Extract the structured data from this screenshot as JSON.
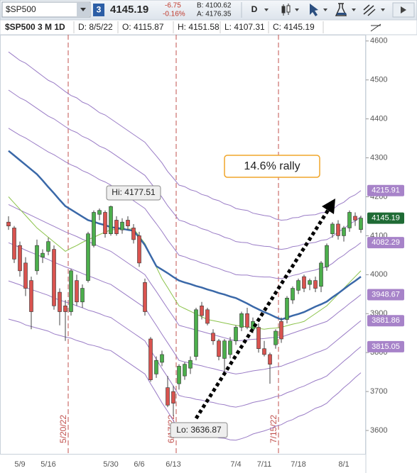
{
  "toolbar": {
    "symbol": "$SP500",
    "badge": "3",
    "last": "4145.19",
    "change": "-6.75",
    "change_pct": "-0.16%",
    "bid": "B: 4100.62",
    "ask": "A: 4176.35",
    "period": "D"
  },
  "info_bar": [
    "$SP500 3 M 1D",
    "D: 8/5/22",
    "O: 4115.87",
    "H: 4151.58",
    "L: 4107.31",
    "C: 4145.19"
  ],
  "events": [
    "5/20/22",
    "6/17/22",
    "7/15/22"
  ],
  "annotations": {
    "high": "Hi: 4177.51",
    "low": "Lo: 3636.87",
    "rally": "14.6% rally"
  },
  "chart_data": {
    "type": "candlestick",
    "categories": [
      null,
      null,
      "5/9",
      null,
      null,
      null,
      null,
      "5/16",
      null,
      null,
      null,
      null,
      null,
      null,
      null,
      null,
      null,
      null,
      "5/30",
      null,
      null,
      null,
      null,
      "6/6",
      null,
      null,
      null,
      null,
      null,
      "6/13",
      null,
      null,
      null,
      null,
      null,
      null,
      null,
      null,
      null,
      null,
      "7/4",
      null,
      null,
      null,
      null,
      "7/11",
      null,
      null,
      null,
      null,
      null,
      "7/18",
      null,
      null,
      null,
      null,
      null,
      null,
      null,
      "8/1",
      null,
      null,
      null
    ],
    "open": [
      4135,
      4120,
      4075,
      4030,
      3985,
      4010,
      4045,
      4060,
      4065,
      3955,
      3920,
      3905,
      3985,
      3930,
      3985,
      4075,
      4155,
      4160,
      4105,
      4140,
      4115,
      4140,
      4120,
      4100,
      3980,
      3835,
      3745,
      3775,
      3710,
      3700,
      3720,
      3740,
      3760,
      3790,
      3920,
      3910,
      3850,
      3830,
      3785,
      3795,
      3830,
      3865,
      3900,
      3860,
      3865,
      3810,
      3795,
      3820,
      3880,
      3885,
      3935,
      3960,
      3995,
      3975,
      3985,
      3970,
      4020,
      4105,
      4130,
      4100,
      4120,
      4150,
      4115.87
    ],
    "high": [
      4150,
      4125,
      4085,
      4045,
      3995,
      4090,
      4065,
      4095,
      4075,
      3965,
      3935,
      4015,
      4000,
      3975,
      4110,
      4165,
      4170,
      4165,
      4177.51,
      4150,
      4145,
      4150,
      4130,
      4110,
      3990,
      3840,
      3790,
      3805,
      3740,
      3715,
      3770,
      3775,
      3790,
      3915,
      3930,
      3915,
      3860,
      3835,
      3835,
      3840,
      3870,
      3905,
      3915,
      3890,
      3875,
      3830,
      3800,
      3860,
      3890,
      3945,
      3970,
      3990,
      4000,
      3990,
      3995,
      4035,
      4080,
      4135,
      4140,
      4125,
      4165,
      4160,
      4151.58
    ],
    "low": [
      4115,
      4030,
      3995,
      3945,
      3860,
      4000,
      4030,
      4050,
      3910,
      3870,
      3830,
      3895,
      3920,
      3915,
      3980,
      4070,
      4140,
      4095,
      4100,
      4100,
      4105,
      4115,
      4080,
      4020,
      3895,
      3725,
      3735,
      3765,
      3660,
      3636.87,
      3705,
      3730,
      3745,
      3780,
      3885,
      3870,
      3820,
      3780,
      3745,
      3785,
      3820,
      3855,
      3860,
      3850,
      3800,
      3790,
      3720,
      3810,
      3825,
      3875,
      3925,
      3950,
      3955,
      3960,
      3955,
      3955,
      4010,
      4095,
      4090,
      4085,
      4110,
      4125,
      4107.31
    ],
    "close": [
      4125,
      4040,
      4010,
      3965,
      3905,
      4075,
      4055,
      4085,
      3920,
      3905,
      3905,
      4010,
      3930,
      3965,
      4105,
      4160,
      4165,
      4105,
      4175,
      4105,
      4135,
      4125,
      4090,
      4030,
      3905,
      3730,
      3780,
      3795,
      3665,
      3670,
      3765,
      3770,
      3780,
      3910,
      3895,
      3875,
      3830,
      3790,
      3830,
      3830,
      3865,
      3900,
      3865,
      3880,
      3810,
      3795,
      3770,
      3855,
      3835,
      3940,
      3965,
      3985,
      3965,
      3985,
      3965,
      4030,
      4075,
      4130,
      4100,
      4120,
      4160,
      4140,
      4145.19
    ],
    "up_color": "#4cae4c",
    "down_color": "#d9534f",
    "lines": [
      {
        "color": "#9a7cc6",
        "width": 1,
        "values": [
          4572,
          4561,
          4550,
          4543,
          4532,
          4521,
          4510,
          4499,
          4492,
          4481,
          4470,
          4460,
          4454,
          4443,
          4437,
          4427,
          4416,
          4410,
          4400,
          4390,
          4380,
          4370,
          4360,
          4350,
          4340,
          4322,
          4305,
          4287,
          4265,
          4248,
          4230,
          4226,
          4218,
          4214,
          4206,
          4202,
          4194,
          4190,
          4182,
          4178,
          4170,
          4167,
          4165,
          4158,
          4155,
          4152,
          4150,
          4143,
          4140,
          4141,
          4146,
          4147,
          4152,
          4153,
          4154,
          4159,
          4160,
          4167,
          4179,
          4186,
          4198,
          4205,
          4215.91
        ]
      },
      {
        "color": "#9a7cc6",
        "width": 1,
        "values": [
          4474,
          4464,
          4454,
          4447,
          4437,
          4427,
          4417,
          4407,
          4400,
          4390,
          4380,
          4371,
          4365,
          4355,
          4349,
          4340,
          4330,
          4324,
          4315,
          4305,
          4295,
          4285,
          4275,
          4265,
          4255,
          4236,
          4218,
          4199,
          4177,
          4159,
          4140,
          4136,
          4129,
          4125,
          4118,
          4114,
          4107,
          4103,
          4096,
          4092,
          4085,
          4083,
          4082,
          4077,
          4075,
          4073,
          4072,
          4067,
          4065,
          4067,
          4072,
          4074,
          4079,
          4081,
          4083,
          4088,
          4090,
          4098,
          4110,
          4118,
          4130,
          4138,
          4149.1
        ]
      },
      {
        "color": "#9a7cc6",
        "width": 1,
        "values": [
          4376,
          4367,
          4358,
          4351,
          4342,
          4333,
          4324,
          4315,
          4308,
          4299,
          4290,
          4282,
          4276,
          4267,
          4261,
          4253,
          4244,
          4238,
          4230,
          4220,
          4210,
          4200,
          4190,
          4180,
          4170,
          4150,
          4131,
          4111,
          4089,
          4070,
          4050,
          4046,
          4040,
          4036,
          4030,
          4026,
          4020,
          4016,
          4010,
          4006,
          4000,
          3999,
          3999,
          3996,
          3995,
          3994,
          3994,
          3991,
          3990,
          3993,
          3998,
          4001,
          4006,
          4009,
          4012,
          4017,
          4020,
          4029,
          4041,
          4050,
          4062,
          4071,
          4082.29
        ]
      },
      {
        "color": "#9a7cc6",
        "width": 1,
        "values": [
          4180,
          4173,
          4166,
          4159,
          4152,
          4145,
          4138,
          4131,
          4124,
          4117,
          4110,
          4104,
          4098,
          4091,
          4085,
          4079,
          4072,
          4066,
          4060,
          4050,
          4040,
          4030,
          4020,
          4010,
          4000,
          3978,
          3957,
          3935,
          3913,
          3892,
          3870,
          3866,
          3862,
          3858,
          3854,
          3850,
          3846,
          3842,
          3838,
          3834,
          3830,
          3831,
          3833,
          3834,
          3835,
          3836,
          3838,
          3839,
          3840,
          3845,
          3850,
          3855,
          3860,
          3865,
          3870,
          3875,
          3880,
          3891,
          3903,
          3914,
          3926,
          3937,
          3948.67
        ]
      },
      {
        "color": "#9a7cc6",
        "width": 1,
        "values": [
          4082,
          4076,
          4070,
          4063,
          4057,
          4051,
          4045,
          4039,
          4032,
          4026,
          4020,
          4015,
          4009,
          4003,
          3997,
          3992,
          3986,
          3980,
          3975,
          3965,
          3955,
          3945,
          3935,
          3925,
          3915,
          3892,
          3870,
          3847,
          3825,
          3803,
          3780,
          3776,
          3773,
          3769,
          3766,
          3762,
          3759,
          3755,
          3752,
          3748,
          3745,
          3747,
          3750,
          3753,
          3755,
          3757,
          3760,
          3763,
          3765,
          3771,
          3776,
          3782,
          3787,
          3793,
          3799,
          3804,
          3810,
          3822,
          3834,
          3846,
          3858,
          3870,
          3881.86
        ]
      },
      {
        "color": "#9a7cc6",
        "width": 1,
        "values": [
          3984,
          3979,
          3974,
          3967,
          3962,
          3957,
          3952,
          3947,
          3940,
          3935,
          3930,
          3926,
          3920,
          3915,
          3909,
          3905,
          3900,
          3894,
          3890,
          3880,
          3870,
          3860,
          3850,
          3840,
          3830,
          3806,
          3783,
          3759,
          3737,
          3714,
          3690,
          3686,
          3684,
          3680,
          3678,
          3674,
          3672,
          3668,
          3666,
          3662,
          3660,
          3663,
          3667,
          3672,
          3675,
          3678,
          3682,
          3687,
          3690,
          3697,
          3702,
          3709,
          3714,
          3721,
          3728,
          3733,
          3740,
          3753,
          3765,
          3778,
          3790,
          3803,
          3815.05
        ]
      },
      {
        "color": "#9a7cc6",
        "width": 1,
        "values": [
          3886,
          3882,
          3878,
          3871,
          3867,
          3863,
          3859,
          3855,
          3848,
          3844,
          3840,
          3837,
          3831,
          3827,
          3821,
          3818,
          3814,
          3808,
          3805,
          3795,
          3785,
          3775,
          3765,
          3755,
          3745,
          3720,
          3696,
          3671,
          3649,
          3625,
          3600,
          3596,
          3595,
          3591,
          3590,
          3586,
          3585,
          3581,
          3580,
          3576,
          3575,
          3579,
          3584,
          3591,
          3595,
          3599,
          3604,
          3611,
          3615,
          3623,
          3628,
          3636,
          3641,
          3649,
          3657,
          3662,
          3670,
          3684,
          3696,
          3710,
          3722,
          3736,
          3748.24
        ]
      },
      {
        "color": "#8bc34a",
        "width": 1,
        "values": [
          4200,
          4184,
          4168,
          4152,
          4136,
          4120,
          4108,
          4096,
          4084,
          4072,
          4060,
          4068,
          4075,
          4083,
          4090,
          4096,
          4103,
          4109,
          4115,
          4116,
          4117,
          4117,
          4118,
          4099,
          4080,
          4050,
          4020,
          3990,
          3967,
          3943,
          3920,
          3913,
          3906,
          3899,
          3892,
          3885,
          3882,
          3879,
          3876,
          3873,
          3870,
          3868,
          3866,
          3864,
          3862,
          3860,
          3862,
          3863,
          3865,
          3869,
          3873,
          3876,
          3880,
          3890,
          3900,
          3910,
          3920,
          3935,
          3950,
          3965,
          3980,
          3995,
          4010
        ]
      },
      {
        "color": "#3a68a8",
        "width": 2.5,
        "values": [
          4318,
          4306,
          4294,
          4282,
          4270,
          4258,
          4242,
          4225,
          4209,
          4192,
          4176,
          4167,
          4158,
          4149,
          4140,
          4136,
          4131,
          4127,
          4122,
          4120,
          4118,
          4115,
          4113,
          4095,
          4076,
          4049,
          4022,
          4013,
          4004,
          3994,
          3985,
          3980,
          3976,
          3971,
          3967,
          3962,
          3958,
          3953,
          3949,
          3944,
          3940,
          3933,
          3926,
          3918,
          3911,
          3904,
          3898,
          3891,
          3885,
          3890,
          3895,
          3899,
          3904,
          3911,
          3918,
          3924,
          3931,
          3942,
          3952,
          3963,
          3974,
          3984,
          3995
        ]
      }
    ],
    "ylim": [
      3540,
      4616
    ],
    "yticks": [
      3600,
      3700,
      3800,
      3900,
      4000,
      4100,
      4200,
      4300,
      4400,
      4500,
      4600
    ],
    "price_labels": [
      {
        "value": 4215.91,
        "color": "#a783c9"
      },
      {
        "value": 4145.19,
        "color": "#1f6b35"
      },
      {
        "value": 4082.29,
        "color": "#a783c9"
      },
      {
        "value": 3948.67,
        "color": "#a783c9"
      },
      {
        "value": 3881.86,
        "color": "#a783c9"
      },
      {
        "value": 3815.05,
        "color": "#a783c9"
      }
    ]
  }
}
